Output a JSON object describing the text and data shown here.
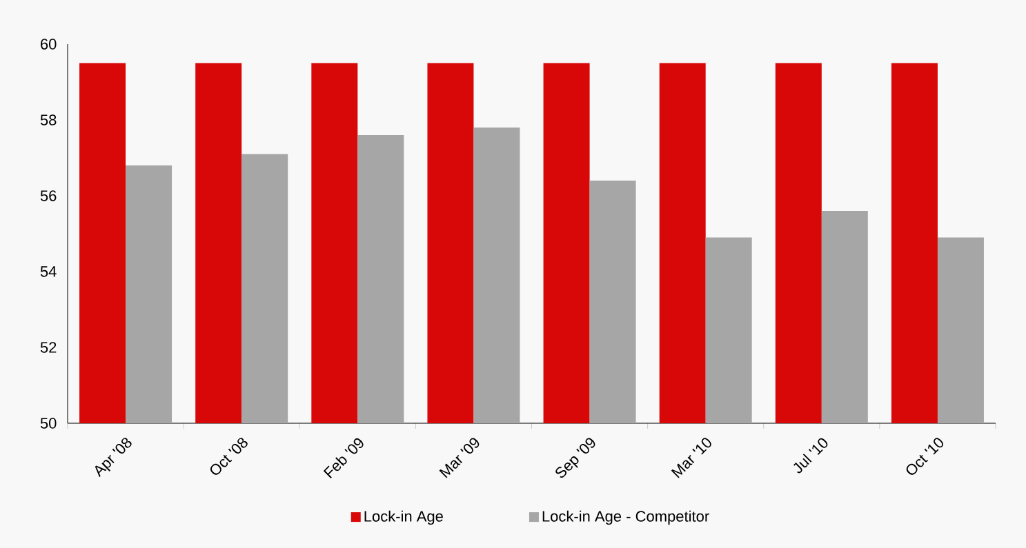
{
  "chart_data": {
    "type": "bar",
    "categories": [
      "Apr '08",
      "Oct '08",
      "Feb '09",
      "Mar '09",
      "Sep '09",
      "Mar '10",
      "Jul '10",
      "Oct '10"
    ],
    "series": [
      {
        "name": "Lock-in Age",
        "color": "#d90808",
        "values": [
          59.5,
          59.5,
          59.5,
          59.5,
          59.5,
          59.5,
          59.5,
          59.5
        ]
      },
      {
        "name": "Lock-in Age - Competitor",
        "color": "#a6a6a6",
        "values": [
          56.8,
          57.1,
          57.6,
          57.8,
          56.4,
          54.9,
          55.6,
          54.9
        ]
      }
    ],
    "ylim": [
      50,
      60
    ],
    "yticks": [
      50,
      52,
      54,
      56,
      58,
      60
    ],
    "grid": false,
    "legend": "bottom"
  }
}
